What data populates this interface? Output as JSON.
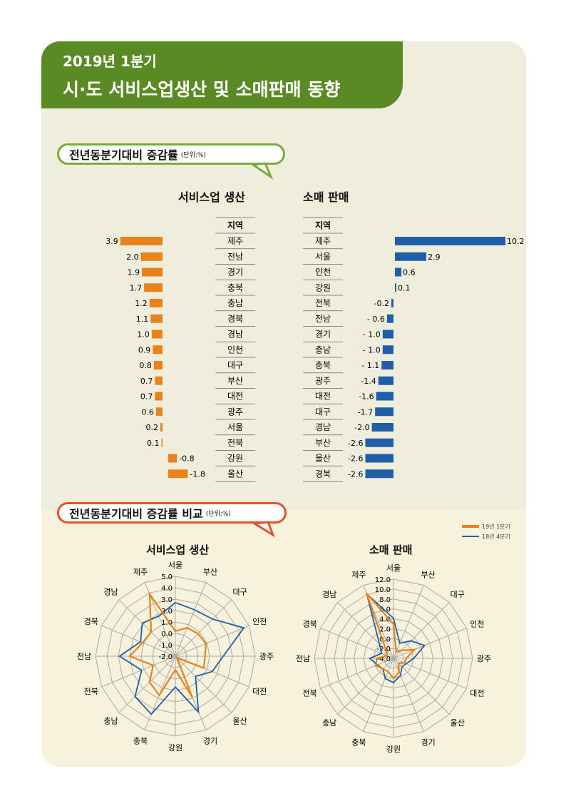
{
  "header": {
    "line1": "2019년 1분기",
    "line2": "시·도 서비스업생산 및 소매판매 동향"
  },
  "section1": {
    "title": "전년동분기대비 증감률",
    "unit": "(단위:%)"
  },
  "section2": {
    "title": "전년동분기대비 증감률 비교",
    "unit": "(단위:%)"
  },
  "colors": {
    "orange": "#e8821a",
    "blue": "#1f5fa8",
    "green": "#5a8a24"
  },
  "chart_data": [
    {
      "type": "bar",
      "title": "서비스업 생산",
      "column_header": "지역",
      "categories": [
        "제주",
        "전남",
        "경기",
        "충북",
        "충남",
        "경북",
        "경남",
        "인천",
        "대구",
        "부산",
        "대전",
        "광주",
        "서울",
        "전북",
        "강원",
        "울산"
      ],
      "values": [
        3.9,
        2.0,
        1.9,
        1.7,
        1.2,
        1.1,
        1.0,
        0.9,
        0.8,
        0.7,
        0.7,
        0.6,
        0.2,
        0.1,
        -0.8,
        -1.8
      ],
      "labels": [
        "3.9",
        "2.0",
        "1.9",
        "1.7",
        "1.2",
        "1.1",
        "1.0",
        "0.9",
        "0.8",
        "0.7",
        "0.7",
        "0.6",
        "0.2",
        "0.1",
        "-0.8",
        "-1.8"
      ]
    },
    {
      "type": "bar",
      "title": "소매 판매",
      "column_header": "지역",
      "categories": [
        "제주",
        "서울",
        "인천",
        "강원",
        "전북",
        "전남",
        "경기",
        "충남",
        "충북",
        "광주",
        "대전",
        "대구",
        "경남",
        "부산",
        "울산",
        "경북"
      ],
      "values": [
        10.2,
        2.9,
        0.6,
        0.1,
        -0.2,
        -0.6,
        -1.0,
        -1.0,
        -1.1,
        -1.4,
        -1.6,
        -1.7,
        -2.0,
        -2.6,
        -2.6,
        -2.6
      ],
      "labels": [
        "10.2",
        "2.9",
        "0.6",
        "0.1",
        "-0.2",
        "- 0.6",
        "- 1.0",
        "- 1.0",
        "- 1.1",
        "-1.4",
        "-1.6",
        "-1.7",
        "-2.0",
        "-2.6",
        "-2.6",
        "-2.6"
      ]
    },
    {
      "type": "radar",
      "title": "서비스업 생산",
      "axes": [
        "서울",
        "부산",
        "대구",
        "인천",
        "광주",
        "대전",
        "울산",
        "경기",
        "강원",
        "충북",
        "충남",
        "전북",
        "전남",
        "경북",
        "경남",
        "제주"
      ],
      "range": [
        -2.0,
        5.0
      ],
      "ticks": [
        "-2.0",
        "-1.0",
        "0.0",
        "1.0",
        "2.0",
        "3.0",
        "4.0",
        "5.0"
      ],
      "series": [
        {
          "name": "19년 1분기",
          "values": [
            0.2,
            0.7,
            0.8,
            0.9,
            0.6,
            0.7,
            -1.8,
            1.9,
            -0.8,
            1.7,
            1.2,
            0.1,
            2.0,
            1.1,
            1.0,
            3.9
          ]
        },
        {
          "name": "18년 4분기",
          "values": [
            2.7,
            2.4,
            2.6,
            4.5,
            2.2,
            1.5,
            0.5,
            3.3,
            0.7,
            3.5,
            3.0,
            1.2,
            2.9,
            1.3,
            2.1,
            1.8
          ]
        }
      ]
    },
    {
      "type": "radar",
      "title": "소매 판매",
      "axes": [
        "서울",
        "부산",
        "대구",
        "인천",
        "광주",
        "대전",
        "울산",
        "경기",
        "강원",
        "충북",
        "충남",
        "전북",
        "전남",
        "경북",
        "경남",
        "제주"
      ],
      "range": [
        -4.0,
        12.0
      ],
      "ticks": [
        "-4.0",
        "-2.0",
        "0.0",
        "2.0",
        "4.0",
        "6.0",
        "8.0",
        "10.0",
        "12.0"
      ],
      "series": [
        {
          "name": "19년 1분기",
          "values": [
            2.9,
            -2.6,
            -1.7,
            0.6,
            -1.4,
            -1.6,
            -2.6,
            -1.0,
            0.1,
            -1.1,
            -1.0,
            -0.2,
            -0.6,
            -2.6,
            -2.0,
            10.2
          ]
        },
        {
          "name": "18년 4분기",
          "values": [
            4.1,
            -0.7,
            1.0,
            2.8,
            0.1,
            -1.2,
            -1.6,
            -0.3,
            0.9,
            0.4,
            -1.0,
            -0.5,
            0.8,
            -1.4,
            0.0,
            10.1
          ]
        }
      ]
    }
  ],
  "legend": [
    "19년 1분기",
    "18년 4분기"
  ]
}
